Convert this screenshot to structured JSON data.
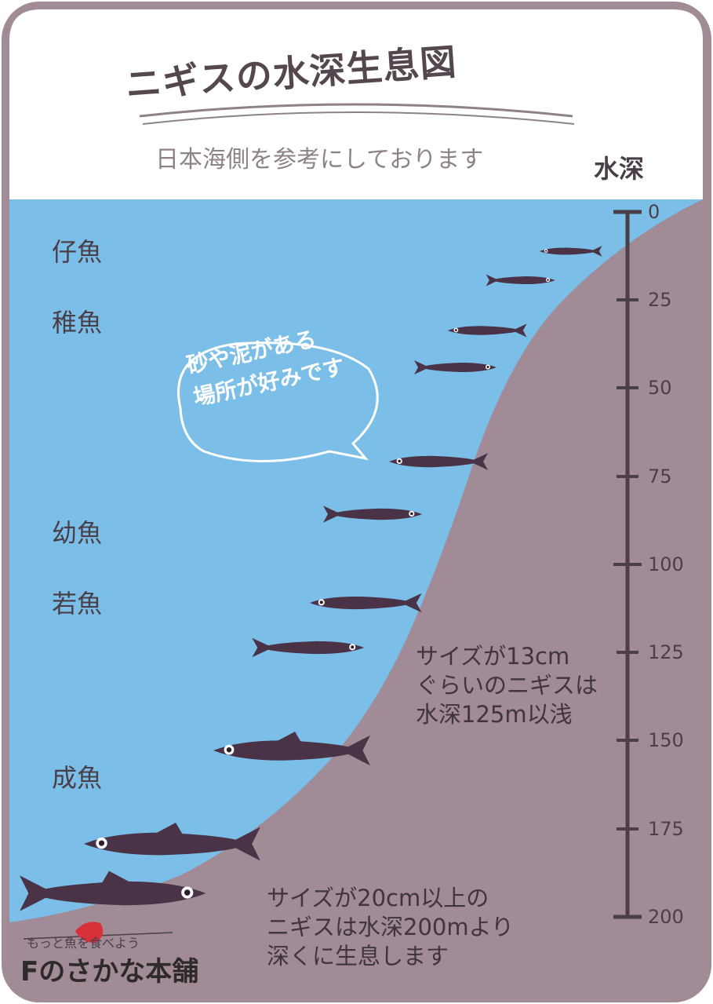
{
  "title": "ニギスの水深生息図",
  "subtitle": "日本海側を参考にしております",
  "depth_axis_label": "水深",
  "depth_ticks": [
    "0",
    "25",
    "50",
    "75",
    "100",
    "125",
    "150",
    "175",
    "200"
  ],
  "stages": [
    "仔魚",
    "稚魚",
    "幼魚",
    "若魚",
    "成魚"
  ],
  "speech_bubble": "砂や泥がある\n場所が好みです",
  "note_small": "サイズが13cm\nぐらいのニギスは\n水深125m以浅",
  "note_large": "サイズが20cm以上の\nニギスは水深200mより\n深くに生息します",
  "logo_tagline": "もっと魚を食べよう",
  "logo_name": "Fのさかな本舗",
  "colors": {
    "water": "#7bbfe8",
    "seabed": "#a08b96",
    "frame": "#a08b96",
    "fish": "#4a3247",
    "text": "#4a3f49"
  }
}
